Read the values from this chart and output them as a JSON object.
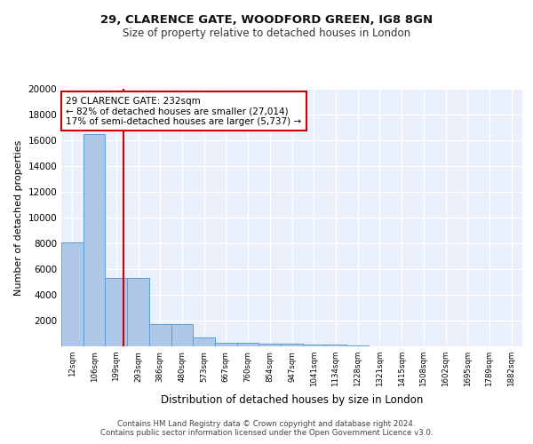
{
  "title1": "29, CLARENCE GATE, WOODFORD GREEN, IG8 8GN",
  "title2": "Size of property relative to detached houses in London",
  "xlabel": "Distribution of detached houses by size in London",
  "ylabel": "Number of detached properties",
  "bin_labels": [
    "12sqm",
    "106sqm",
    "199sqm",
    "293sqm",
    "386sqm",
    "480sqm",
    "573sqm",
    "667sqm",
    "760sqm",
    "854sqm",
    "947sqm",
    "1041sqm",
    "1134sqm",
    "1228sqm",
    "1321sqm",
    "1415sqm",
    "1508sqm",
    "1602sqm",
    "1695sqm",
    "1789sqm",
    "1882sqm"
  ],
  "bar_values": [
    8100,
    16500,
    5300,
    5300,
    1750,
    1750,
    700,
    300,
    250,
    200,
    175,
    150,
    125,
    100,
    0,
    0,
    0,
    0,
    0,
    0,
    0
  ],
  "bar_color": "#aec6e8",
  "bar_edge_color": "#5a9fd4",
  "background_color": "#eaf0fb",
  "grid_color": "#ffffff",
  "vline_x": 2.35,
  "vline_color": "#cc0000",
  "annotation_text": "29 CLARENCE GATE: 232sqm\n← 82% of detached houses are smaller (27,014)\n17% of semi-detached houses are larger (5,737) →",
  "annotation_box_color": "#ffffff",
  "annotation_box_edge_color": "#cc0000",
  "footer_text": "Contains HM Land Registry data © Crown copyright and database right 2024.\nContains public sector information licensed under the Open Government Licence v3.0.",
  "ylim": [
    0,
    20000
  ],
  "yticks": [
    0,
    2000,
    4000,
    6000,
    8000,
    10000,
    12000,
    14000,
    16000,
    18000,
    20000
  ]
}
